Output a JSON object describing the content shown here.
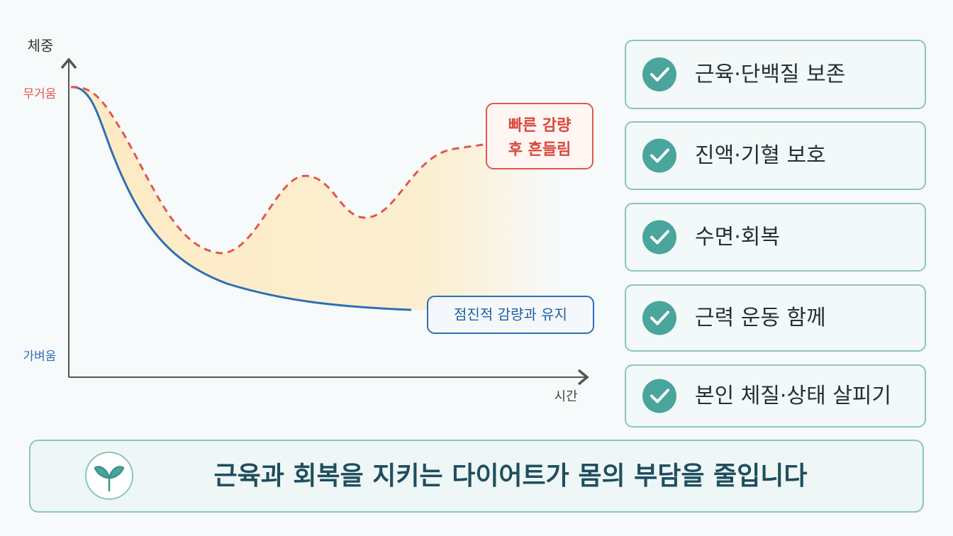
{
  "chart": {
    "y_label": "체중",
    "y_top": "무거움",
    "y_bottom": "가벼움",
    "x_label": "시간",
    "fast_label": [
      "빠른 감량",
      "후 흔들림"
    ],
    "slow_label": "점진적 감량과 유지"
  },
  "checklist": [
    "근육·단백질 보존",
    "진액·기혈 보호",
    "수면·회복",
    "근력 운동 함께",
    "본인 체질·상태 살피기"
  ],
  "footer": "근육과 회복을 지키는 다이어트가 몸의 부담을 줄입니다"
}
